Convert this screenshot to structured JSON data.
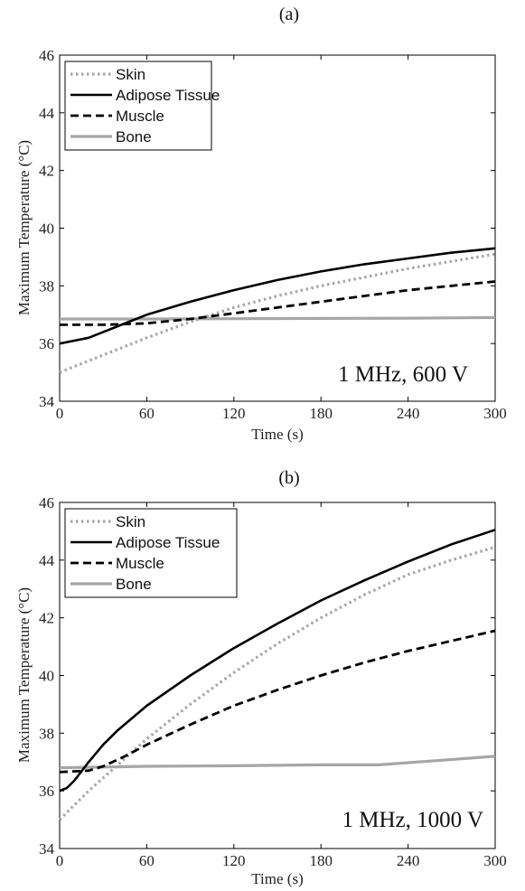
{
  "chart_data": [
    {
      "type": "line",
      "panel_label": "(a)",
      "annotation": "1 MHz, 600 V",
      "xlabel": "Time (s)",
      "ylabel": "Maximum Temperature (°C)",
      "xlim": [
        0,
        300
      ],
      "ylim": [
        34,
        46
      ],
      "xticks": [
        0,
        60,
        120,
        180,
        240,
        300
      ],
      "yticks": [
        34,
        36,
        38,
        40,
        42,
        44,
        46
      ],
      "legend_position": "top-left",
      "grid": false,
      "series": [
        {
          "name": "Skin",
          "style": "dotted",
          "color": "#a6a6a6",
          "x": [
            0,
            30,
            60,
            90,
            120,
            150,
            180,
            210,
            240,
            270,
            300
          ],
          "y": [
            35.0,
            35.6,
            36.2,
            36.75,
            37.25,
            37.65,
            38.0,
            38.3,
            38.6,
            38.85,
            39.1
          ]
        },
        {
          "name": "Adipose Tissue",
          "style": "solid",
          "color": "#000000",
          "x": [
            0,
            10,
            20,
            30,
            60,
            90,
            120,
            150,
            180,
            210,
            240,
            270,
            300
          ],
          "y": [
            36.0,
            36.1,
            36.2,
            36.4,
            37.0,
            37.45,
            37.85,
            38.2,
            38.5,
            38.75,
            38.95,
            39.15,
            39.3
          ]
        },
        {
          "name": "Muscle",
          "style": "dashed",
          "color": "#000000",
          "x": [
            0,
            30,
            60,
            90,
            120,
            150,
            180,
            210,
            240,
            270,
            300
          ],
          "y": [
            36.65,
            36.65,
            36.7,
            36.85,
            37.05,
            37.25,
            37.45,
            37.65,
            37.85,
            38.0,
            38.15
          ]
        },
        {
          "name": "Bone",
          "style": "solid",
          "color": "#a6a6a6",
          "x": [
            0,
            60,
            120,
            180,
            240,
            300
          ],
          "y": [
            36.85,
            36.85,
            36.86,
            36.87,
            36.88,
            36.9
          ]
        }
      ]
    },
    {
      "type": "line",
      "panel_label": "(b)",
      "annotation": "1 MHz, 1000 V",
      "xlabel": "Time (s)",
      "ylabel": "Maximum Temperature (°C)",
      "xlim": [
        0,
        300
      ],
      "ylim": [
        34,
        46
      ],
      "xticks": [
        0,
        60,
        120,
        180,
        240,
        300
      ],
      "yticks": [
        34,
        36,
        38,
        40,
        42,
        44,
        46
      ],
      "legend_position": "top-left",
      "grid": false,
      "series": [
        {
          "name": "Skin",
          "style": "dotted",
          "color": "#a6a6a6",
          "x": [
            0,
            20,
            40,
            60,
            90,
            120,
            150,
            180,
            210,
            240,
            270,
            300
          ],
          "y": [
            35.0,
            36.0,
            36.9,
            37.8,
            39.0,
            40.1,
            41.1,
            42.0,
            42.8,
            43.5,
            44.0,
            44.45
          ]
        },
        {
          "name": "Adipose Tissue",
          "style": "solid",
          "color": "#000000",
          "x": [
            0,
            5,
            10,
            20,
            30,
            40,
            60,
            90,
            120,
            150,
            180,
            210,
            240,
            270,
            300
          ],
          "y": [
            36.0,
            36.1,
            36.35,
            37.0,
            37.6,
            38.1,
            38.95,
            40.0,
            40.95,
            41.8,
            42.6,
            43.3,
            43.95,
            44.55,
            45.05
          ]
        },
        {
          "name": "Muscle",
          "style": "dashed",
          "color": "#000000",
          "x": [
            0,
            20,
            30,
            45,
            60,
            90,
            120,
            150,
            180,
            210,
            240,
            270,
            300
          ],
          "y": [
            36.65,
            36.7,
            36.85,
            37.2,
            37.6,
            38.3,
            38.95,
            39.5,
            40.0,
            40.45,
            40.85,
            41.2,
            41.55
          ]
        },
        {
          "name": "Bone",
          "style": "solid",
          "color": "#a6a6a6",
          "x": [
            0,
            60,
            120,
            180,
            220,
            260,
            300
          ],
          "y": [
            36.8,
            36.85,
            36.87,
            36.9,
            36.9,
            37.05,
            37.2
          ]
        }
      ]
    }
  ]
}
